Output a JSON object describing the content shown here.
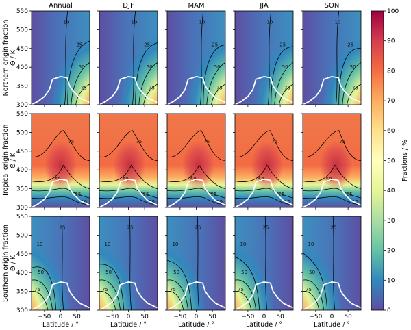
{
  "figure": {
    "seasons": [
      "Annual",
      "DJF",
      "MAM",
      "JJA",
      "SON"
    ],
    "row_labels": [
      "Northern origin fraction",
      "Tropical origin fraction",
      "Southern origin fraction"
    ],
    "ylabel": "Θ / K",
    "xlabel": "Latitude / °",
    "colorbar_label": "Fractions / %",
    "colors": {
      "tropopause_line": "#ffffff",
      "contour_line": "#000000"
    }
  },
  "chart_data": {
    "type": "heatmap",
    "grid": "5 seasons x 3 origin regions",
    "xlim": [
      -90,
      90
    ],
    "ylim": [
      300,
      550
    ],
    "xticks": [
      -50,
      0,
      50
    ],
    "xtick_labels": [
      "−50",
      "0",
      "50"
    ],
    "yticks": [
      300,
      350,
      400,
      450,
      500,
      550
    ],
    "ytick_labels": [
      "300",
      "350",
      "400",
      "450",
      "500",
      "550"
    ],
    "colorbar": {
      "colormap": "Spectral_r",
      "min": 0,
      "max": 100,
      "ticks": [
        0,
        10,
        20,
        30,
        40,
        50,
        60,
        70,
        80,
        90,
        100
      ],
      "tick_labels": [
        "0",
        "10",
        "20",
        "30",
        "40",
        "50",
        "60",
        "70",
        "80",
        "90",
        "100"
      ]
    },
    "contour_levels": [
      10,
      25,
      50,
      75
    ],
    "contour_labels": {
      "northern": [
        "10",
        "25",
        "50",
        "75"
      ],
      "tropical": [
        "75",
        "50",
        "25",
        "10"
      ],
      "southern": [
        "10",
        "25",
        "50",
        "75"
      ]
    },
    "tropopause_theta_K": [
      {
        "lat": -90,
        "theta": 300
      },
      {
        "lat": -70,
        "theta": 309
      },
      {
        "lat": -50,
        "theta": 322
      },
      {
        "lat": -35,
        "theta": 340
      },
      {
        "lat": -25,
        "theta": 368
      },
      {
        "lat": 0,
        "theta": 375
      },
      {
        "lat": 20,
        "theta": 372
      },
      {
        "lat": 28,
        "theta": 350
      },
      {
        "lat": 40,
        "theta": 335
      },
      {
        "lat": 60,
        "theta": 318
      },
      {
        "lat": 90,
        "theta": 306
      }
    ]
  }
}
